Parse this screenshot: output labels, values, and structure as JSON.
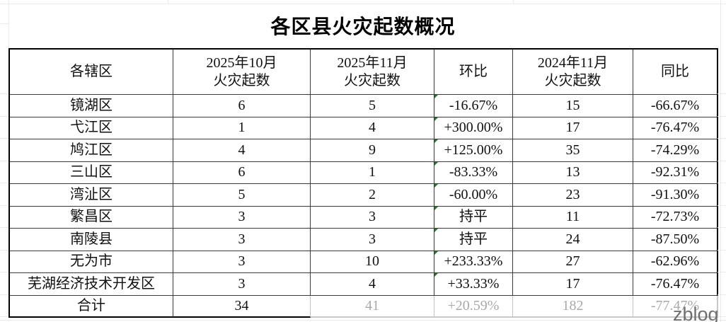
{
  "title": "各区县火灾起数概况",
  "watermark": "zblog",
  "table": {
    "headers": [
      "各辖区",
      "2025年10月\n火灾起数",
      "2025年11月\n火灾起数",
      "环比",
      "2024年11月\n火灾起数",
      "同比"
    ],
    "rows": [
      {
        "district": "镜湖区",
        "oct2025": "6",
        "nov2025": "5",
        "mom": "-16.67%",
        "nov2024": "15",
        "yoy": "-66.67%"
      },
      {
        "district": "弋江区",
        "oct2025": "1",
        "nov2025": "4",
        "mom": "+300.00%",
        "nov2024": "17",
        "yoy": "-76.47%"
      },
      {
        "district": "鸠江区",
        "oct2025": "4",
        "nov2025": "9",
        "mom": "+125.00%",
        "nov2024": "35",
        "yoy": "-74.29%"
      },
      {
        "district": "三山区",
        "oct2025": "6",
        "nov2025": "1",
        "mom": "-83.33%",
        "nov2024": "13",
        "yoy": "-92.31%"
      },
      {
        "district": "湾沚区",
        "oct2025": "5",
        "nov2025": "2",
        "mom": "-60.00%",
        "nov2024": "23",
        "yoy": "-91.30%"
      },
      {
        "district": "繁昌区",
        "oct2025": "3",
        "nov2025": "3",
        "mom": "持平",
        "nov2024": "11",
        "yoy": "-72.73%"
      },
      {
        "district": "南陵县",
        "oct2025": "3",
        "nov2025": "3",
        "mom": "持平",
        "nov2024": "24",
        "yoy": "-87.50%"
      },
      {
        "district": "无为市",
        "oct2025": "3",
        "nov2025": "10",
        "mom": "+233.33%",
        "nov2024": "27",
        "yoy": "-62.96%"
      },
      {
        "district": "芜湖经济技术开发区",
        "oct2025": "3",
        "nov2025": "4",
        "mom": "+33.33%",
        "nov2024": "17",
        "yoy": "-76.47%"
      }
    ],
    "total": {
      "district": "合计",
      "oct2025": "34",
      "nov2025": "41",
      "mom": "+20.59%",
      "nov2024": "182",
      "yoy": "-77.47%"
    }
  },
  "chart_data": {
    "type": "table",
    "title": "各区县火灾起数概况",
    "columns": [
      "各辖区",
      "2025年10月火灾起数",
      "2025年11月火灾起数",
      "环比",
      "2024年11月火灾起数",
      "同比"
    ],
    "rows": [
      [
        "镜湖区",
        6,
        5,
        "-16.67%",
        15,
        "-66.67%"
      ],
      [
        "弋江区",
        1,
        4,
        "+300.00%",
        17,
        "-76.47%"
      ],
      [
        "鸠江区",
        4,
        9,
        "+125.00%",
        35,
        "-74.29%"
      ],
      [
        "三山区",
        6,
        1,
        "-83.33%",
        13,
        "-92.31%"
      ],
      [
        "湾沚区",
        5,
        2,
        "-60.00%",
        23,
        "-91.30%"
      ],
      [
        "繁昌区",
        3,
        3,
        "持平",
        11,
        "-72.73%"
      ],
      [
        "南陵县",
        3,
        3,
        "持平",
        24,
        "-87.50%"
      ],
      [
        "无为市",
        3,
        10,
        "+233.33%",
        27,
        "-62.96%"
      ],
      [
        "芜湖经济技术开发区",
        3,
        4,
        "+33.33%",
        17,
        "-76.47%"
      ],
      [
        "合计",
        34,
        41,
        "+20.59%",
        182,
        "-77.47%"
      ]
    ]
  },
  "colors": {
    "indicator_green": "#217a21",
    "faded_text": "#a9a9a9",
    "watermark_gray": "#6f6f6f"
  }
}
